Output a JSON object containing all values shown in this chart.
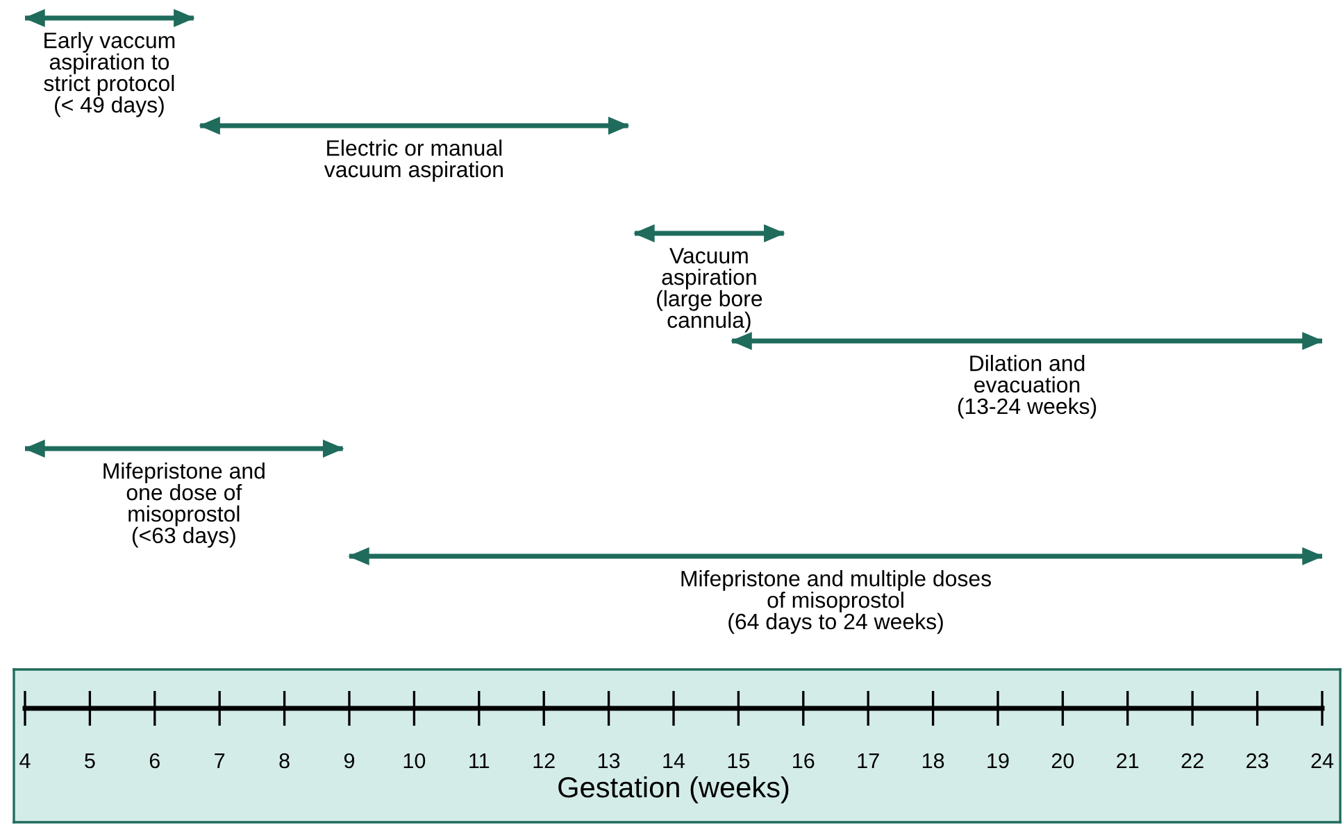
{
  "chart_data": {
    "type": "bar",
    "orientation": "horizontal",
    "categories": [
      null,
      null,
      null,
      null,
      null,
      null
    ],
    "xlabel": "Gestation (weeks)",
    "xlim": [
      4,
      24
    ],
    "xticks": [
      4,
      5,
      6,
      7,
      8,
      9,
      10,
      11,
      12,
      13,
      14,
      15,
      16,
      17,
      18,
      19,
      20,
      21,
      22,
      23,
      24
    ],
    "series": [
      {
        "color": "#1f6b5c",
        "base": [
          4,
          6.7,
          13.4,
          14.9,
          4,
          9.0
        ],
        "values": [
          2.6,
          6.6,
          2.3,
          9.1,
          4.9,
          15.0
        ]
      }
    ],
    "annotations": [
      "Early vaccum\naspiration to\nstrict protocol\n(< 49 days)",
      "Electric or manual\nvacuum aspiration",
      "Vacuum\naspiration\n(large bore\ncannula)",
      "Dilation and\nevacuation\n(13-24 weeks)",
      "Mifepristone and\none dose of\nmisoprostol\n(<63 days)",
      "Mifepristone and multiple doses\nof misoprostol\n(64 days to 24 weeks)"
    ],
    "grid": false,
    "legend": false
  }
}
